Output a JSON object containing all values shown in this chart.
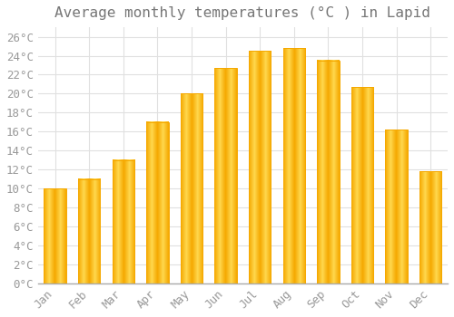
{
  "title": "Average monthly temperatures (°C ) in Lapid",
  "months": [
    "Jan",
    "Feb",
    "Mar",
    "Apr",
    "May",
    "Jun",
    "Jul",
    "Aug",
    "Sep",
    "Oct",
    "Nov",
    "Dec"
  ],
  "values": [
    10.0,
    11.0,
    13.0,
    17.0,
    20.0,
    22.7,
    24.5,
    24.8,
    23.5,
    20.7,
    16.2,
    11.8
  ],
  "bar_color_center": "#FFD84D",
  "bar_color_edge": "#F5A800",
  "background_color": "#FFFFFF",
  "grid_color": "#E0E0E0",
  "title_color": "#777777",
  "tick_color": "#999999",
  "axis_line_color": "#AAAAAA",
  "ylim": [
    0,
    27
  ],
  "ytick_step": 2,
  "title_fontsize": 11.5,
  "tick_fontsize": 9,
  "bar_width": 0.65
}
